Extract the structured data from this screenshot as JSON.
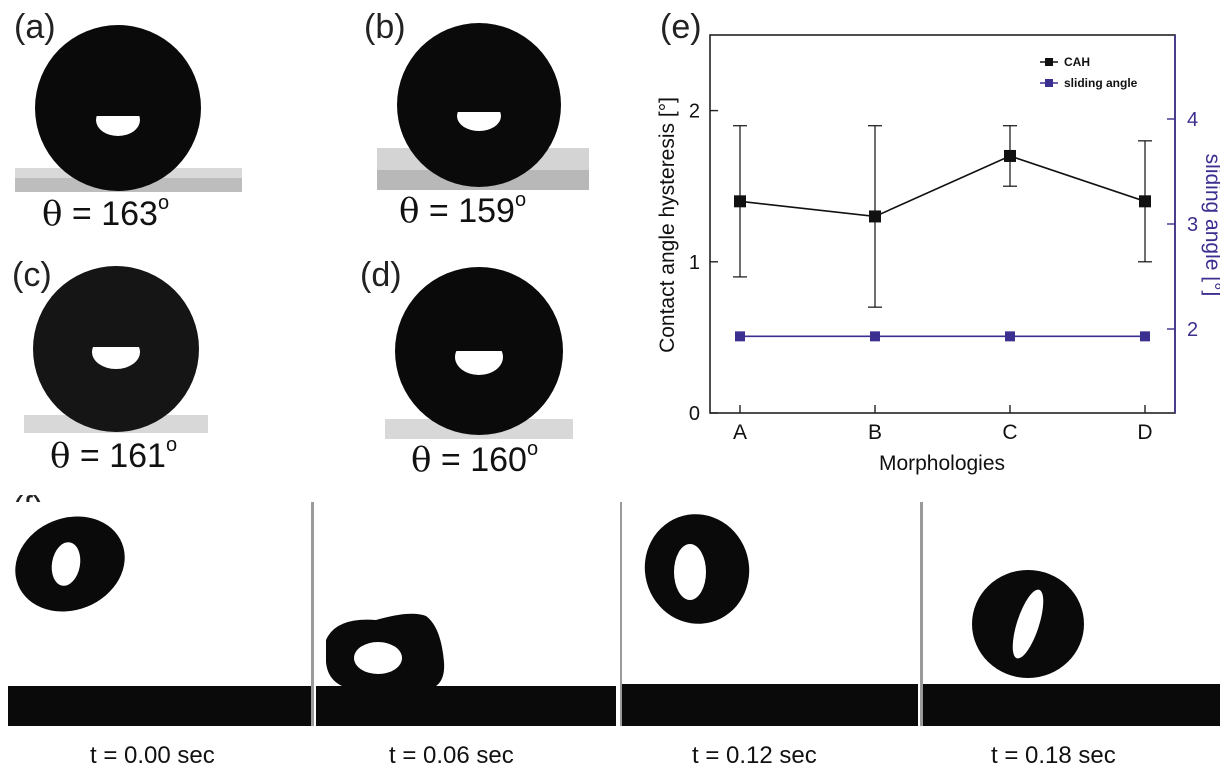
{
  "panels": {
    "a": {
      "label": "(a)",
      "theta_symbol": "θ",
      "theta_text": " = 163",
      "degree": "o"
    },
    "b": {
      "label": "(b)",
      "theta_symbol": "θ",
      "theta_text": " = 159",
      "degree": "o"
    },
    "c": {
      "label": "(c)",
      "theta_symbol": "θ",
      "theta_text": " = 161",
      "degree": "o"
    },
    "d": {
      "label": "(d)",
      "theta_symbol": "θ",
      "theta_text": " = 160",
      "degree": "o"
    },
    "e": {
      "label": "(e)"
    },
    "f": {
      "label": "(f)"
    }
  },
  "sequence": {
    "frames": [
      {
        "caption": "t = 0.00 sec"
      },
      {
        "caption": "t = 0.06 sec"
      },
      {
        "caption": "t = 0.12 sec"
      },
      {
        "caption": "t = 0.18 sec"
      }
    ]
  },
  "colors": {
    "cah": "#111111",
    "sliding": "#3b2f8f",
    "drop": "#0a0a0a",
    "substrate": "#d8d8d8"
  },
  "chart_data": {
    "type": "line",
    "categories": [
      "A",
      "B",
      "C",
      "D"
    ],
    "xlabel": "Morphologies",
    "ylabel": "Contact angle hysteresis [°]",
    "y2label": "sliding angle [°]",
    "ylim": [
      0,
      2.5
    ],
    "y2lim": [
      1.2,
      4.8
    ],
    "yticks": [
      "0",
      "1",
      "2"
    ],
    "y2ticks": [
      "2",
      "3",
      "4"
    ],
    "legend_position": "top-right",
    "series": [
      {
        "name": "CAH",
        "axis": "left",
        "values": [
          1.4,
          1.3,
          1.7,
          1.4
        ],
        "err_low": [
          0.9,
          0.7,
          1.5,
          1.0
        ],
        "err_high": [
          1.9,
          1.9,
          1.9,
          1.8
        ]
      },
      {
        "name": "sliding angle",
        "axis": "right",
        "values": [
          1.93,
          1.93,
          1.93,
          1.93
        ]
      }
    ]
  }
}
